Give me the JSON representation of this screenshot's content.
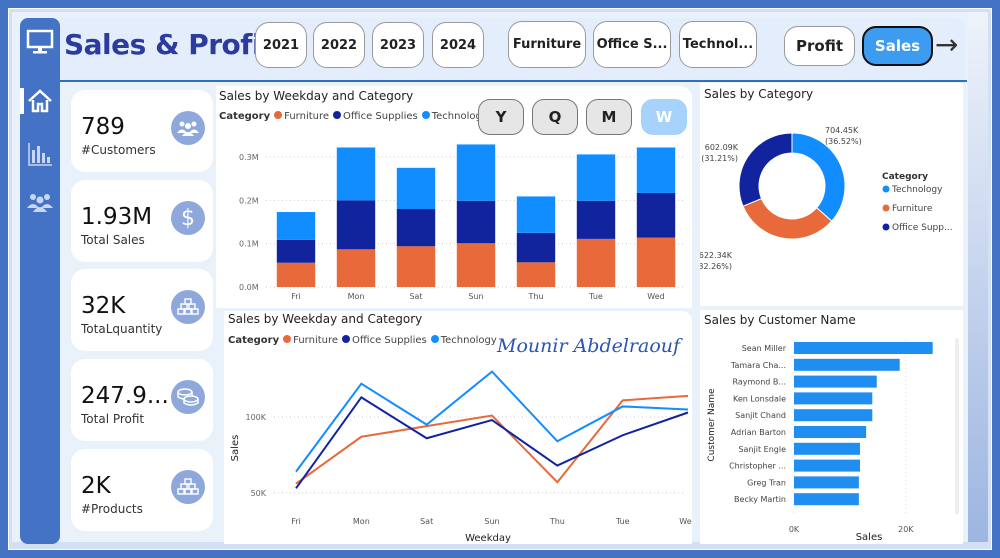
{
  "header": {
    "title": "Sales & Profit",
    "year_buttons": [
      "2021",
      "2022",
      "2023",
      "2024"
    ],
    "category_buttons": [
      "Furniture",
      "Office S...",
      "Technol..."
    ],
    "metric_buttons": [
      {
        "label": "Profit",
        "active": false
      },
      {
        "label": "Sales",
        "active": true
      }
    ],
    "next_icon": "arrow-right-icon"
  },
  "sidebar": {
    "logo_icon": "monitor-icon",
    "items": [
      {
        "icon": "home-icon",
        "active": true
      },
      {
        "icon": "bar-chart-icon",
        "active": false
      },
      {
        "icon": "people-icon",
        "active": false
      }
    ]
  },
  "kpis": [
    {
      "value": "789",
      "label": "#Customers",
      "icon": "people-icon"
    },
    {
      "value": "1.93M",
      "label": "Total Sales",
      "icon": "dollar-icon"
    },
    {
      "value": "32K",
      "label": "TotaLquantity",
      "icon": "boxes-icon"
    },
    {
      "value": "247.9...",
      "label": "Total Profit",
      "icon": "coins-icon"
    },
    {
      "value": "2K",
      "label": "#Products",
      "icon": "boxes-icon"
    }
  ],
  "period_buttons": [
    {
      "label": "Y",
      "active": false
    },
    {
      "label": "Q",
      "active": false
    },
    {
      "label": "M",
      "active": false
    },
    {
      "label": "W",
      "active": true
    }
  ],
  "colors": {
    "Furniture": "#e8693a",
    "Office Supplies": "#12239e",
    "Technology": "#118dff",
    "accent": "#4472c4"
  },
  "signature": "Mounir Abdelraouf",
  "chart_data": [
    {
      "id": "stacked",
      "type": "bar",
      "stacked": true,
      "title": "Sales by Weekday and Category",
      "legend_title": "Category",
      "legend_position": "top-left",
      "categories": [
        "Fri",
        "Mon",
        "Sat",
        "Sun",
        "Thu",
        "Tue",
        "Wed"
      ],
      "series": [
        {
          "name": "Furniture",
          "values": [
            56000,
            87000,
            94000,
            101000,
            57000,
            111000,
            114000
          ]
        },
        {
          "name": "Office Supplies",
          "values": [
            53000,
            113000,
            86000,
            98000,
            68000,
            88000,
            103000
          ]
        },
        {
          "name": "Technology",
          "values": [
            64000,
            122000,
            95000,
            130000,
            84000,
            107000,
            105000
          ]
        }
      ],
      "yticks": [
        "0.0M",
        "0.1M",
        "0.2M",
        "0.3M"
      ],
      "ylim": [
        0,
        330000
      ],
      "grid": true
    },
    {
      "id": "line",
      "type": "line",
      "title": "Sales by Weekday and Category",
      "legend_title": "Category",
      "legend_position": "top-left",
      "xlabel": "Weekday",
      "ylabel": "Sales",
      "categories": [
        "Fri",
        "Mon",
        "Sat",
        "Sun",
        "Thu",
        "Tue",
        "Wed"
      ],
      "series": [
        {
          "name": "Furniture",
          "values": [
            56000,
            87000,
            94000,
            101000,
            57000,
            111000,
            114000
          ]
        },
        {
          "name": "Office Supplies",
          "values": [
            53000,
            113000,
            86000,
            98000,
            68000,
            88000,
            103000
          ]
        },
        {
          "name": "Technology",
          "values": [
            64000,
            122000,
            95000,
            130000,
            84000,
            107000,
            105000
          ]
        }
      ],
      "yticks": [
        "50K",
        "100K"
      ],
      "ylim": [
        40000,
        135000
      ],
      "grid": true
    },
    {
      "id": "donut",
      "type": "pie",
      "donut": true,
      "title": "Sales by Category",
      "legend_title": "Category",
      "legend_position": "right",
      "legend_labels": [
        "Technology",
        "Furniture",
        "Office Supp..."
      ],
      "slices": [
        {
          "name": "Technology",
          "value": 704450,
          "label": "704.45K",
          "percent": "(36.52%)"
        },
        {
          "name": "Furniture",
          "value": 622340,
          "label": "622.34K",
          "percent": "(32.26%)"
        },
        {
          "name": "Office Supplies",
          "value": 602090,
          "label": "602.09K",
          "percent": "(31.21%)"
        }
      ]
    },
    {
      "id": "hbar",
      "type": "bar",
      "orientation": "horizontal",
      "title": "Sales by Customer Name",
      "xlabel": "Sales",
      "ylabel": "Customer Name",
      "categories": [
        "Sean Miller",
        "Tamara Cha...",
        "Raymond B...",
        "Ken Lonsdale",
        "Sanjit Chand",
        "Adrian Barton",
        "Sanjit Engle",
        "Christopher ...",
        "Greg Tran",
        "Becky Martin"
      ],
      "values": [
        24800,
        18900,
        14800,
        14000,
        14000,
        12900,
        11800,
        11800,
        11600,
        11600
      ],
      "xticks": [
        "0K",
        "20K"
      ],
      "xlim": [
        0,
        27000
      ],
      "grid": true
    }
  ]
}
